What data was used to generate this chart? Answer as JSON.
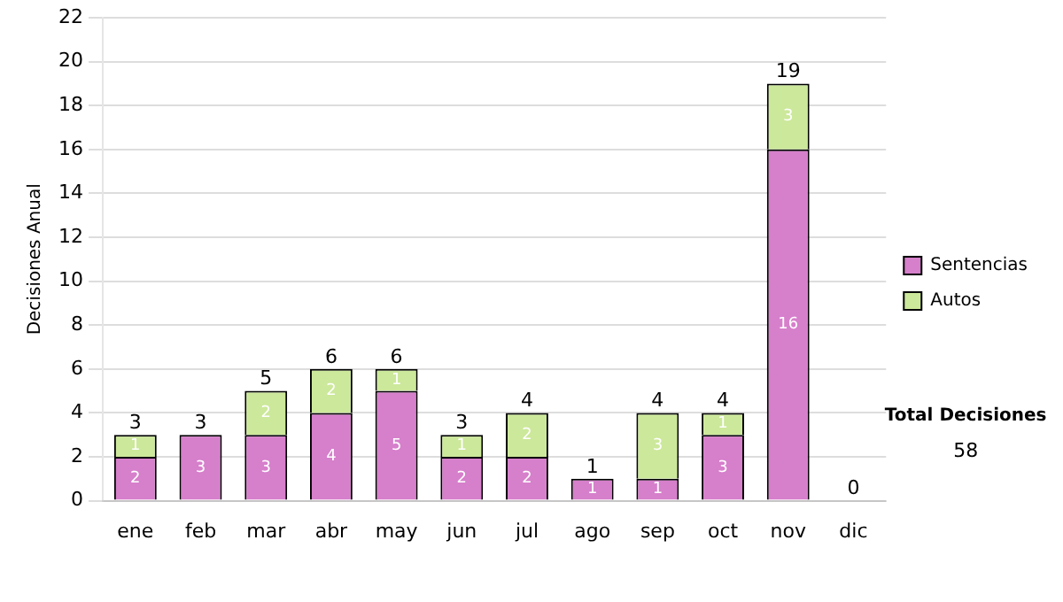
{
  "chart_data": {
    "type": "bar",
    "stacked": true,
    "ylabel": "Decisiones Anual",
    "categories": [
      "ene",
      "feb",
      "mar",
      "abr",
      "may",
      "jun",
      "jul",
      "ago",
      "sep",
      "oct",
      "nov",
      "dic"
    ],
    "series": [
      {
        "name": "Sentencias",
        "color": "#d67fcb",
        "values": [
          2,
          3,
          3,
          4,
          5,
          2,
          2,
          1,
          1,
          3,
          16,
          0
        ],
        "value_labels": [
          "2",
          "3",
          "3",
          "4",
          "5",
          "2",
          "2",
          "1",
          "1",
          "3",
          "16",
          null
        ]
      },
      {
        "name": "Autos",
        "color": "#cce89a",
        "values": [
          1,
          0,
          2,
          2,
          1,
          1,
          2,
          0,
          3,
          1,
          3,
          0
        ],
        "value_labels": [
          "1",
          null,
          "2",
          "2",
          "1",
          "1",
          "2",
          null,
          "3",
          "1",
          "3",
          null
        ]
      }
    ],
    "totals": [
      "3",
      "3",
      "5",
      "6",
      "6",
      "3",
      "4",
      "1",
      "4",
      "4",
      "19",
      "0"
    ],
    "ylim": [
      0,
      22
    ],
    "yticks": [
      0,
      2,
      4,
      6,
      8,
      10,
      12,
      14,
      16,
      18,
      20,
      22
    ],
    "grid": "y",
    "legend": "right",
    "annotations": [
      "Total Decisiones",
      "58"
    ]
  }
}
